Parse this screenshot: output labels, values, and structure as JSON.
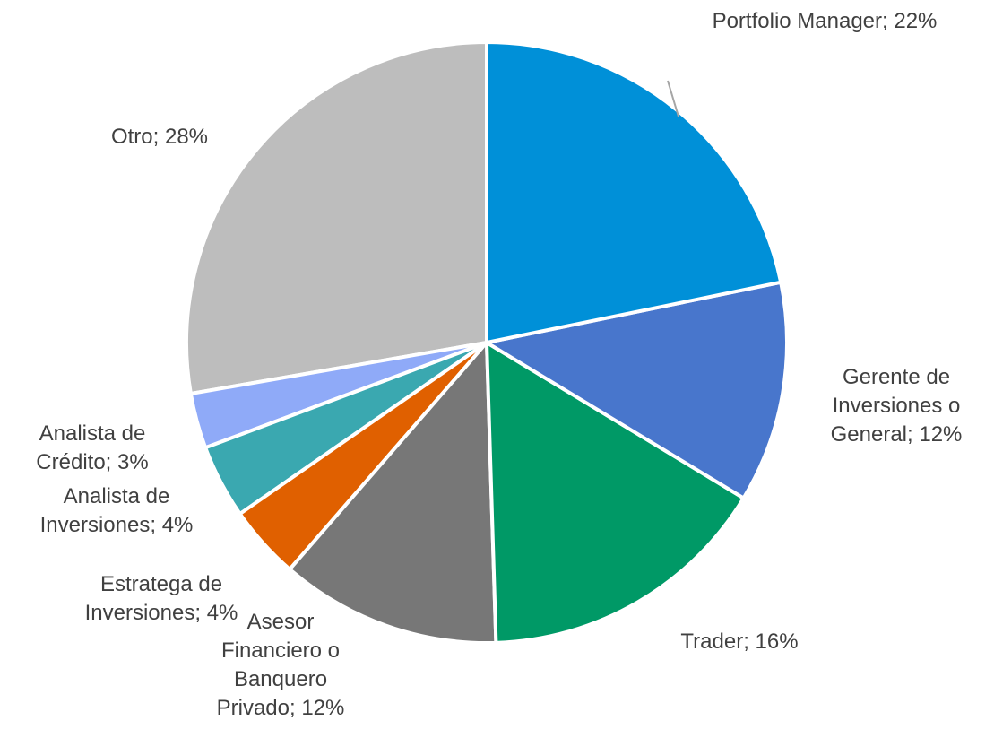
{
  "chart_data": {
    "type": "pie",
    "categories": [
      "Portfolio Manager;",
      "Gerente de Inversiones o General;",
      "Trader;",
      "Asesor Financiero o Banquero Privado;",
      "Estratega de Inversiones;",
      "Analista de Inversiones;",
      "Analista de Crédito;",
      "Otro;"
    ],
    "values": [
      22,
      12,
      16,
      12,
      4,
      4,
      3,
      28
    ],
    "value_labels": [
      "22%",
      "12%",
      "16%",
      "12%",
      "4%",
      "4%",
      "3%",
      "28%"
    ],
    "colors": [
      "#0090d8",
      "#4876cc",
      "#009966",
      "#777777",
      "#e06000",
      "#3aa8b0",
      "#8faaf8",
      "#bdbdbd"
    ]
  }
}
